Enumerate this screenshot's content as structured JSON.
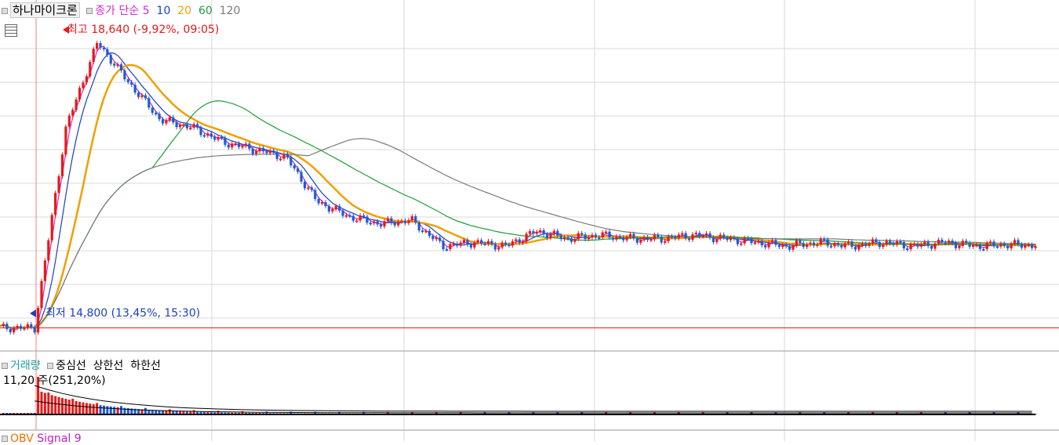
{
  "chart_data": [
    {
      "type": "candlestick",
      "name": "하나마이크론",
      "indicator_title": "종가 단순",
      "ma_periods": [
        "5",
        "10",
        "20",
        "60",
        "120"
      ],
      "ma_colors": {
        "5": "#d12bd1",
        "10": "#1a3fc4",
        "20": "#f0a000",
        "60": "#1e9e3a",
        "120": "#7a7a7a"
      },
      "annotations": {
        "high": "최고 18,640 (-9,92%, 09:05)",
        "low": "최저 14,800 (13,45%, 15:30)"
      },
      "price_range": [
        14700,
        19000
      ],
      "high_value": 18640,
      "low_value": 14800,
      "reference_line": 14800,
      "samples_close": [
        14800,
        17500,
        18640,
        18100,
        17600,
        17500,
        17300,
        17200,
        17100,
        16500,
        16300,
        16200,
        16250,
        15900,
        15950,
        15900,
        16100,
        16000,
        16050,
        16000,
        16000,
        16050,
        16000,
        15950,
        15900,
        15950,
        15900,
        15950,
        15900,
        15950,
        15900,
        15920,
        15910
      ]
    },
    {
      "type": "bar",
      "name": "거래량",
      "bands": [
        "중심선",
        "상한선",
        "하한선"
      ],
      "readout": "11,20 주(251,20%)"
    }
  ],
  "bottom_panel": {
    "label1": "OBV",
    "label2": "Signal 9"
  },
  "colors": {
    "up": "#e81919",
    "down": "#1e5bd6",
    "grid": "#d9d9d9",
    "ref_line": "#e81919"
  }
}
